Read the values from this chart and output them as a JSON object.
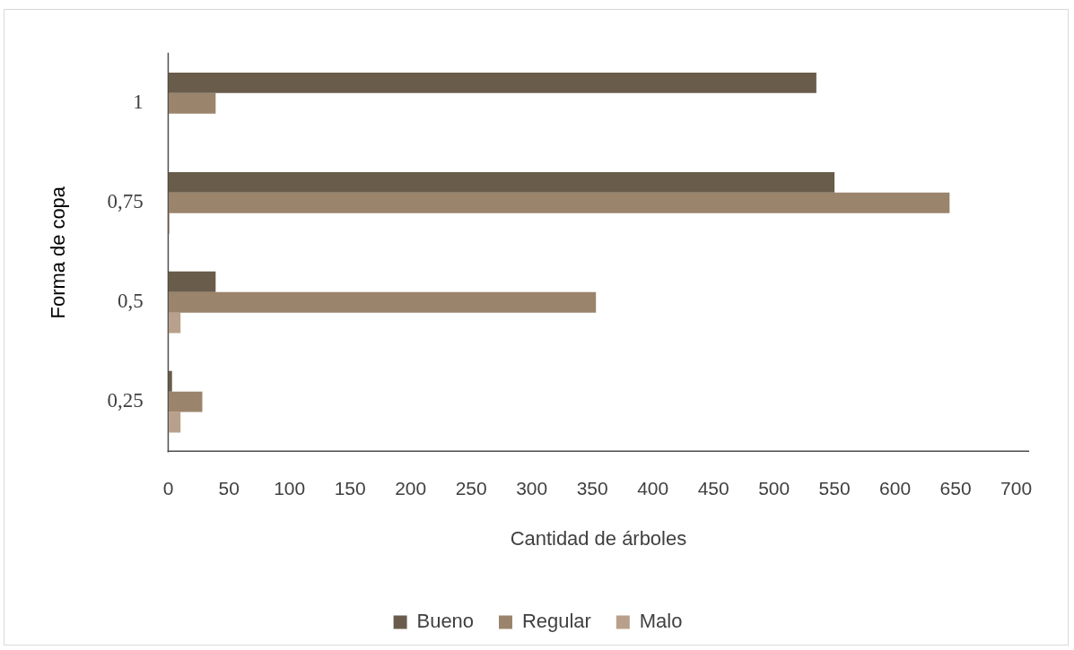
{
  "chart_data": {
    "type": "bar",
    "orientation": "horizontal",
    "xlabel": "Cantidad de árboles",
    "ylabel": "Forma de copa",
    "categories": [
      "1",
      "0,75",
      "0,5",
      "0,25"
    ],
    "series": [
      {
        "name": "Bueno",
        "color": "#6a5c4b",
        "values": [
          535,
          550,
          39,
          3
        ]
      },
      {
        "name": "Regular",
        "color": "#9a846b",
        "values": [
          39,
          645,
          353,
          28
        ]
      },
      {
        "name": "Malo",
        "color": "#b8a08c",
        "values": [
          0,
          1,
          10,
          10
        ]
      }
    ],
    "xlim": [
      0,
      710
    ],
    "xticks": [
      0,
      50,
      100,
      150,
      200,
      250,
      300,
      350,
      400,
      450,
      500,
      550,
      600,
      650,
      700
    ],
    "grid": false,
    "legend": "bottom"
  }
}
